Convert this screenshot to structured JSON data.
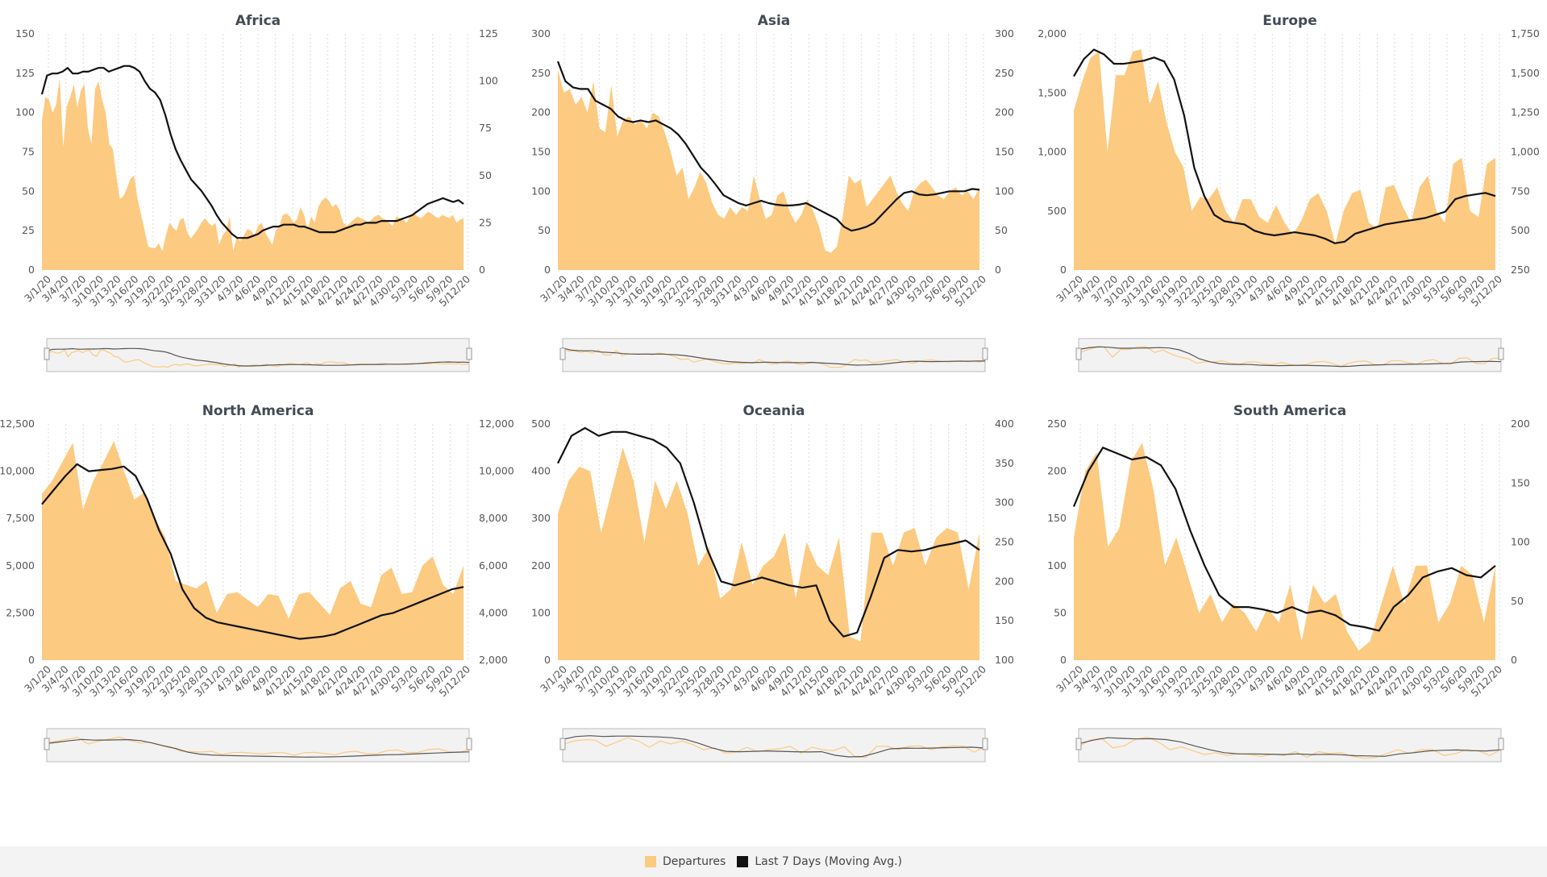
{
  "colors": {
    "departures": "#fcca80",
    "moving_avg": "#111111",
    "grid": "#dcdcdc",
    "navigator_bg": "#f2f2f2"
  },
  "legend": {
    "departures": "Departures",
    "moving_avg": "Last 7 Days (Moving Avg.)"
  },
  "chart_data": [
    {
      "type": "area",
      "title": "Africa",
      "x_ticks": [
        "3/1/20",
        "3/4/20",
        "3/7/20",
        "3/10/20",
        "3/13/20",
        "3/16/20",
        "3/19/20",
        "3/22/20",
        "3/25/20",
        "3/28/20",
        "3/31/20",
        "4/3/20",
        "4/6/20",
        "4/9/20",
        "4/12/20",
        "4/15/20",
        "4/18/20",
        "4/21/20",
        "4/24/20",
        "4/27/20",
        "4/30/20",
        "5/3/20",
        "5/6/20",
        "5/9/20",
        "5/12/20"
      ],
      "left_axis": {
        "ticks": [
          "0",
          "25",
          "50",
          "75",
          "100",
          "125",
          "150"
        ],
        "range": [
          0,
          150
        ]
      },
      "right_axis": {
        "ticks": [
          "0",
          "25",
          "50",
          "75",
          "100",
          "125"
        ],
        "range": [
          0,
          125
        ]
      },
      "series": [
        {
          "name": "Departures",
          "axis": "left",
          "values": [
            95,
            110,
            108,
            100,
            105,
            122,
            78,
            104,
            110,
            118,
            103,
            114,
            118,
            90,
            80,
            115,
            120,
            108,
            100,
            80,
            77,
            60,
            45,
            47,
            52,
            58,
            60,
            45,
            35,
            25,
            15,
            14,
            14,
            17,
            12,
            22,
            30,
            27,
            25,
            32,
            33,
            24,
            20,
            23,
            26,
            30,
            33,
            30,
            28,
            30,
            16,
            22,
            25,
            34,
            12,
            21,
            18,
            22,
            26,
            25,
            22,
            28,
            30,
            24,
            20,
            16,
            25,
            28,
            35,
            36,
            34,
            30,
            32,
            40,
            35,
            26,
            34,
            30,
            40,
            44,
            46,
            44,
            40,
            42,
            38,
            30,
            28,
            30,
            32,
            34,
            33,
            32,
            30,
            32,
            34,
            35,
            33,
            32,
            30,
            28,
            34,
            33,
            32,
            30,
            35,
            36,
            34,
            33,
            35,
            37,
            36,
            34,
            33,
            35,
            34,
            33,
            35,
            30,
            32,
            33
          ]
        },
        {
          "name": "Last 7 Days (Moving Avg.)",
          "axis": "right",
          "values": [
            93,
            103,
            104,
            104,
            105,
            107,
            104,
            104,
            105,
            105,
            106,
            107,
            107,
            105,
            106,
            107,
            108,
            108,
            107,
            105,
            100,
            96,
            94,
            90,
            82,
            72,
            64,
            58,
            53,
            48,
            45,
            42,
            38,
            34,
            29,
            25,
            22,
            19,
            17,
            17,
            17,
            18,
            19,
            21,
            22,
            23,
            23,
            24,
            24,
            24,
            23,
            23,
            22,
            21,
            20,
            20,
            20,
            20,
            21,
            22,
            23,
            24,
            24,
            25,
            25,
            25,
            26,
            26,
            26,
            26,
            27,
            28,
            29,
            31,
            33,
            35,
            36,
            37,
            38,
            37,
            36,
            37,
            35
          ]
        }
      ]
    },
    {
      "type": "area",
      "title": "Asia",
      "x_ticks": [
        "3/1/20",
        "3/4/20",
        "3/7/20",
        "3/10/20",
        "3/13/20",
        "3/16/20",
        "3/19/20",
        "3/22/20",
        "3/25/20",
        "3/28/20",
        "3/31/20",
        "4/3/20",
        "4/6/20",
        "4/9/20",
        "4/12/20",
        "4/15/20",
        "4/18/20",
        "4/21/20",
        "4/24/20",
        "4/27/20",
        "4/30/20",
        "5/3/20",
        "5/6/20",
        "5/9/20",
        "5/12/20"
      ],
      "left_axis": {
        "ticks": [
          "0",
          "50",
          "100",
          "150",
          "200",
          "250",
          "300"
        ],
        "range": [
          0,
          300
        ]
      },
      "right_axis": {
        "ticks": [
          "0",
          "50",
          "100",
          "150",
          "200",
          "250",
          "300"
        ],
        "range": [
          0,
          300
        ]
      },
      "series": [
        {
          "name": "Departures",
          "axis": "left",
          "values": [
            255,
            225,
            230,
            210,
            220,
            200,
            240,
            180,
            175,
            235,
            170,
            190,
            195,
            185,
            190,
            180,
            200,
            195,
            175,
            150,
            120,
            130,
            90,
            105,
            125,
            110,
            85,
            70,
            65,
            80,
            70,
            80,
            75,
            120,
            90,
            65,
            70,
            95,
            100,
            75,
            60,
            70,
            90,
            75,
            55,
            25,
            22,
            30,
            70,
            120,
            110,
            115,
            80,
            90,
            100,
            110,
            120,
            100,
            85,
            75,
            100,
            110,
            115,
            105,
            95,
            90,
            100,
            105,
            95,
            100,
            90,
            105
          ]
        },
        {
          "name": "Last 7 Days (Moving Avg.)",
          "axis": "right",
          "values": [
            265,
            240,
            232,
            230,
            230,
            215,
            210,
            205,
            195,
            190,
            188,
            190,
            188,
            190,
            185,
            180,
            172,
            160,
            145,
            130,
            120,
            108,
            95,
            90,
            85,
            82,
            85,
            88,
            85,
            83,
            82,
            82,
            83,
            85,
            80,
            75,
            70,
            65,
            55,
            50,
            52,
            55,
            60,
            70,
            80,
            90,
            98,
            100,
            96,
            95,
            96,
            98,
            100,
            100,
            100,
            103,
            102
          ]
        }
      ]
    },
    {
      "type": "area",
      "title": "Europe",
      "x_ticks": [
        "3/1/20",
        "3/4/20",
        "3/7/20",
        "3/10/20",
        "3/13/20",
        "3/16/20",
        "3/19/20",
        "3/22/20",
        "3/25/20",
        "3/28/20",
        "3/31/20",
        "4/3/20",
        "4/6/20",
        "4/9/20",
        "4/12/20",
        "4/15/20",
        "4/18/20",
        "4/21/20",
        "4/24/20",
        "4/27/20",
        "4/30/20",
        "5/3/20",
        "5/6/20",
        "5/9/20",
        "5/12/20"
      ],
      "left_axis": {
        "ticks": [
          "0",
          "500",
          "1,000",
          "1,500",
          "2,000"
        ],
        "range": [
          0,
          2000
        ]
      },
      "right_axis": {
        "ticks": [
          "250",
          "500",
          "750",
          "1,000",
          "1,250",
          "1,500",
          "1,750"
        ],
        "range": [
          250,
          1750
        ]
      },
      "series": [
        {
          "name": "Departures",
          "axis": "left",
          "values": [
            1350,
            1600,
            1800,
            1850,
            1000,
            1650,
            1650,
            1850,
            1870,
            1400,
            1600,
            1250,
            1000,
            870,
            500,
            620,
            600,
            700,
            500,
            400,
            600,
            600,
            450,
            400,
            550,
            400,
            300,
            420,
            600,
            650,
            500,
            220,
            500,
            650,
            680,
            400,
            350,
            700,
            720,
            540,
            400,
            700,
            800,
            500,
            400,
            900,
            950,
            500,
            450,
            900,
            950
          ]
        },
        {
          "name": "Last 7 Days (Moving Avg.)",
          "axis": "right",
          "values": [
            1480,
            1590,
            1650,
            1620,
            1560,
            1560,
            1570,
            1580,
            1600,
            1575,
            1460,
            1230,
            900,
            720,
            600,
            560,
            550,
            540,
            500,
            480,
            470,
            480,
            490,
            480,
            470,
            450,
            420,
            430,
            480,
            500,
            520,
            540,
            550,
            560,
            570,
            580,
            600,
            620,
            700,
            720,
            730,
            740,
            720
          ]
        }
      ]
    },
    {
      "type": "area",
      "title": "North America",
      "x_ticks": [
        "3/1/20",
        "3/4/20",
        "3/7/20",
        "3/10/20",
        "3/13/20",
        "3/16/20",
        "3/19/20",
        "3/22/20",
        "3/25/20",
        "3/28/20",
        "3/31/20",
        "4/3/20",
        "4/6/20",
        "4/9/20",
        "4/12/20",
        "4/15/20",
        "4/18/20",
        "4/21/20",
        "4/24/20",
        "4/27/20",
        "4/30/20",
        "5/3/20",
        "5/6/20",
        "5/9/20",
        "5/12/20"
      ],
      "left_axis": {
        "ticks": [
          "0",
          "2,500",
          "5,000",
          "7,500",
          "10,000",
          "12,500"
        ],
        "range": [
          0,
          12500
        ]
      },
      "right_axis": {
        "ticks": [
          "2,000",
          "4,000",
          "6,000",
          "8,000",
          "10,000",
          "12,000"
        ],
        "range": [
          2000,
          12000
        ]
      },
      "series": [
        {
          "name": "Departures",
          "axis": "left",
          "values": [
            8800,
            9500,
            10500,
            11500,
            8000,
            9500,
            10500,
            11600,
            10000,
            8500,
            8900,
            7500,
            6500,
            4200,
            4000,
            3800,
            4200,
            2500,
            3500,
            3600,
            3200,
            2800,
            3500,
            3400,
            2200,
            3500,
            3600,
            3000,
            2400,
            3800,
            4200,
            3000,
            2800,
            4500,
            4900,
            3500,
            3600,
            5000,
            5500,
            4000,
            3500,
            5000
          ]
        },
        {
          "name": "Last 7 Days (Moving Avg.)",
          "axis": "right",
          "values": [
            8600,
            9200,
            9800,
            10300,
            10000,
            10050,
            10100,
            10200,
            9800,
            8800,
            7500,
            6500,
            5000,
            4200,
            3800,
            3600,
            3500,
            3400,
            3300,
            3200,
            3100,
            3000,
            2900,
            2950,
            3000,
            3100,
            3300,
            3500,
            3700,
            3900,
            4000,
            4200,
            4400,
            4600,
            4800,
            5000,
            5100
          ]
        }
      ]
    },
    {
      "type": "area",
      "title": "Oceania",
      "x_ticks": [
        "3/1/20",
        "3/4/20",
        "3/7/20",
        "3/10/20",
        "3/13/20",
        "3/16/20",
        "3/19/20",
        "3/22/20",
        "3/25/20",
        "3/28/20",
        "3/31/20",
        "4/3/20",
        "4/6/20",
        "4/9/20",
        "4/12/20",
        "4/15/20",
        "4/18/20",
        "4/21/20",
        "4/24/20",
        "4/27/20",
        "4/30/20",
        "5/3/20",
        "5/6/20",
        "5/9/20",
        "5/12/20"
      ],
      "left_axis": {
        "ticks": [
          "0",
          "100",
          "200",
          "300",
          "400",
          "500"
        ],
        "range": [
          0,
          500
        ]
      },
      "right_axis": {
        "ticks": [
          "100",
          "150",
          "200",
          "250",
          "300",
          "350",
          "400"
        ],
        "range": [
          100,
          400
        ]
      },
      "series": [
        {
          "name": "Departures",
          "axis": "left",
          "values": [
            310,
            380,
            410,
            400,
            270,
            360,
            450,
            380,
            250,
            380,
            320,
            380,
            310,
            200,
            240,
            130,
            150,
            250,
            160,
            200,
            220,
            270,
            130,
            250,
            200,
            180,
            260,
            50,
            40,
            270,
            270,
            200,
            270,
            280,
            200,
            260,
            280,
            270,
            150,
            270
          ]
        },
        {
          "name": "Last 7 Days (Moving Avg.)",
          "axis": "right",
          "values": [
            350,
            385,
            395,
            385,
            390,
            390,
            385,
            380,
            370,
            350,
            300,
            240,
            200,
            195,
            200,
            205,
            200,
            195,
            192,
            195,
            150,
            130,
            135,
            180,
            230,
            240,
            238,
            240,
            245,
            248,
            252,
            240
          ]
        }
      ]
    },
    {
      "type": "area",
      "title": "South America",
      "x_ticks": [
        "3/1/20",
        "3/4/20",
        "3/7/20",
        "3/10/20",
        "3/13/20",
        "3/16/20",
        "3/19/20",
        "3/22/20",
        "3/25/20",
        "3/28/20",
        "3/31/20",
        "4/3/20",
        "4/6/20",
        "4/9/20",
        "4/12/20",
        "4/15/20",
        "4/18/20",
        "4/21/20",
        "4/24/20",
        "4/27/20",
        "4/30/20",
        "5/3/20",
        "5/6/20",
        "5/9/20",
        "5/12/20"
      ],
      "left_axis": {
        "ticks": [
          "0",
          "50",
          "100",
          "150",
          "200",
          "250"
        ],
        "range": [
          0,
          250
        ]
      },
      "right_axis": {
        "ticks": [
          "0",
          "50",
          "100",
          "150",
          "200"
        ],
        "range": [
          0,
          200
        ]
      },
      "series": [
        {
          "name": "Departures",
          "axis": "left",
          "values": [
            130,
            200,
            220,
            120,
            140,
            210,
            230,
            180,
            100,
            130,
            90,
            50,
            70,
            40,
            60,
            50,
            30,
            55,
            40,
            80,
            20,
            80,
            60,
            70,
            30,
            10,
            20,
            60,
            100,
            60,
            100,
            100,
            40,
            60,
            100,
            90,
            40,
            100
          ]
        },
        {
          "name": "Last 7 Days (Moving Avg.)",
          "axis": "right",
          "values": [
            130,
            160,
            180,
            175,
            170,
            172,
            165,
            145,
            110,
            80,
            55,
            45,
            45,
            43,
            40,
            45,
            40,
            42,
            38,
            30,
            28,
            25,
            45,
            55,
            70,
            75,
            78,
            72,
            70,
            80
          ]
        }
      ]
    }
  ]
}
